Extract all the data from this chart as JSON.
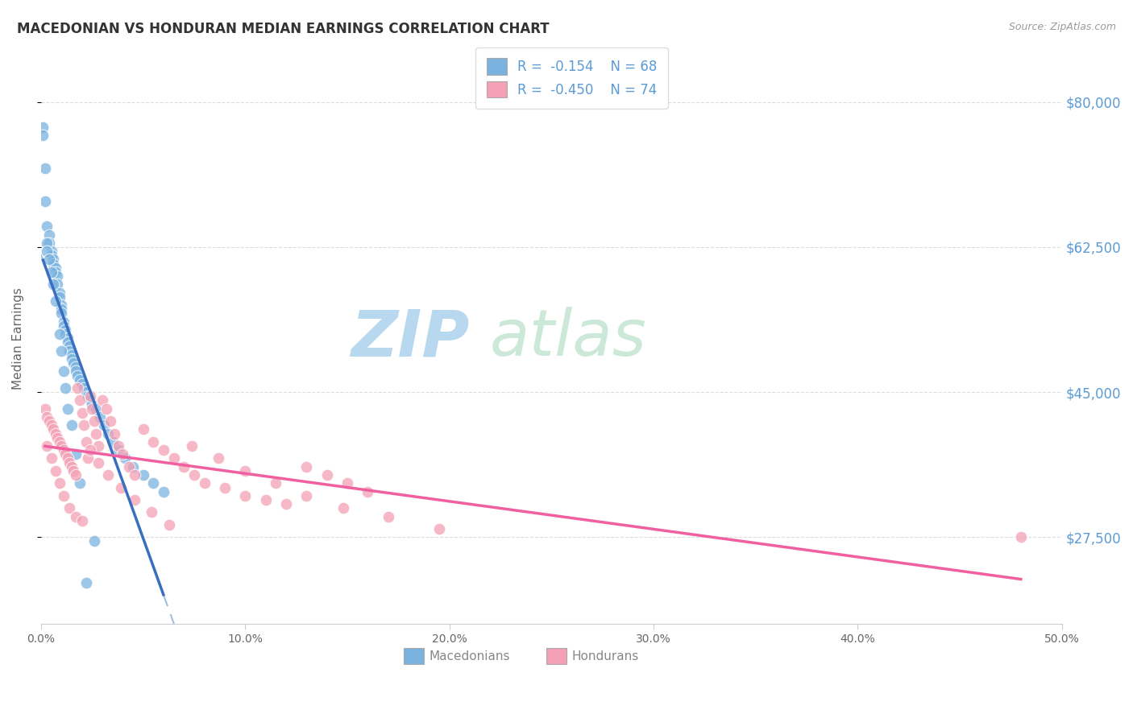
{
  "title": "MACEDONIAN VS HONDURAN MEDIAN EARNINGS CORRELATION CHART",
  "source": "Source: ZipAtlas.com",
  "ylabel": "Median Earnings",
  "ytick_labels": [
    "$27,500",
    "$45,000",
    "$62,500",
    "$80,000"
  ],
  "ytick_values": [
    27500,
    45000,
    62500,
    80000
  ],
  "xlim": [
    0.0,
    0.5
  ],
  "ylim": [
    17000,
    86000
  ],
  "legend_mac_R": "-0.154",
  "legend_mac_N": "68",
  "legend_hon_R": "-0.450",
  "legend_hon_N": "74",
  "macedonian_color": "#7ab3e0",
  "honduran_color": "#f4a0b5",
  "macedonian_line_color": "#3a6fbf",
  "honduran_line_color": "#f060a0",
  "dashed_color": "#a0c0e0",
  "watermark_zip": "ZIP",
  "watermark_atlas": "atlas",
  "watermark_color": "#cfe3f5",
  "macedonians_label": "Macedonians",
  "hondurans_label": "Hondurans",
  "mac_x": [
    0.001,
    0.002,
    0.003,
    0.004,
    0.004,
    0.005,
    0.005,
    0.006,
    0.006,
    0.007,
    0.007,
    0.008,
    0.008,
    0.009,
    0.009,
    0.01,
    0.01,
    0.01,
    0.011,
    0.011,
    0.012,
    0.012,
    0.013,
    0.013,
    0.014,
    0.014,
    0.015,
    0.015,
    0.016,
    0.017,
    0.017,
    0.018,
    0.019,
    0.02,
    0.021,
    0.022,
    0.023,
    0.024,
    0.025,
    0.027,
    0.029,
    0.031,
    0.033,
    0.035,
    0.038,
    0.041,
    0.045,
    0.05,
    0.055,
    0.06,
    0.001,
    0.002,
    0.003,
    0.003,
    0.004,
    0.005,
    0.006,
    0.007,
    0.009,
    0.01,
    0.011,
    0.012,
    0.013,
    0.015,
    0.017,
    0.019,
    0.022,
    0.026
  ],
  "mac_y": [
    77000,
    72000,
    65000,
    64000,
    63000,
    62000,
    61500,
    61000,
    60500,
    60000,
    59500,
    59000,
    58000,
    57000,
    56500,
    55500,
    55000,
    54500,
    53500,
    53000,
    52500,
    52000,
    51500,
    51000,
    50500,
    50000,
    49500,
    49000,
    48500,
    48000,
    47500,
    47000,
    46500,
    46000,
    45500,
    45000,
    44500,
    44000,
    43500,
    43000,
    42000,
    41000,
    40000,
    39000,
    38000,
    37000,
    36000,
    35000,
    34000,
    33000,
    76000,
    68000,
    63000,
    62000,
    61000,
    59500,
    58000,
    56000,
    52000,
    50000,
    47500,
    45500,
    43000,
    41000,
    37500,
    34000,
    22000,
    27000
  ],
  "hon_x": [
    0.002,
    0.003,
    0.004,
    0.005,
    0.006,
    0.007,
    0.008,
    0.009,
    0.01,
    0.011,
    0.012,
    0.013,
    0.014,
    0.015,
    0.016,
    0.017,
    0.018,
    0.019,
    0.02,
    0.021,
    0.022,
    0.023,
    0.024,
    0.025,
    0.026,
    0.027,
    0.028,
    0.03,
    0.032,
    0.034,
    0.036,
    0.038,
    0.04,
    0.043,
    0.046,
    0.05,
    0.055,
    0.06,
    0.065,
    0.07,
    0.075,
    0.08,
    0.09,
    0.1,
    0.11,
    0.12,
    0.13,
    0.14,
    0.15,
    0.16,
    0.003,
    0.005,
    0.007,
    0.009,
    0.011,
    0.014,
    0.017,
    0.02,
    0.024,
    0.028,
    0.033,
    0.039,
    0.046,
    0.054,
    0.063,
    0.074,
    0.087,
    0.1,
    0.115,
    0.13,
    0.148,
    0.17,
    0.195,
    0.48
  ],
  "hon_y": [
    43000,
    42000,
    41500,
    41000,
    40500,
    40000,
    39500,
    39000,
    38500,
    38000,
    37500,
    37000,
    36500,
    36000,
    35500,
    35000,
    45500,
    44000,
    42500,
    41000,
    39000,
    37000,
    44500,
    43000,
    41500,
    40000,
    38500,
    44000,
    43000,
    41500,
    40000,
    38500,
    37500,
    36000,
    35000,
    40500,
    39000,
    38000,
    37000,
    36000,
    35000,
    34000,
    33500,
    32500,
    32000,
    31500,
    36000,
    35000,
    34000,
    33000,
    38500,
    37000,
    35500,
    34000,
    32500,
    31000,
    30000,
    29500,
    38000,
    36500,
    35000,
    33500,
    32000,
    30500,
    29000,
    38500,
    37000,
    35500,
    34000,
    32500,
    31000,
    30000,
    28500,
    27500
  ]
}
